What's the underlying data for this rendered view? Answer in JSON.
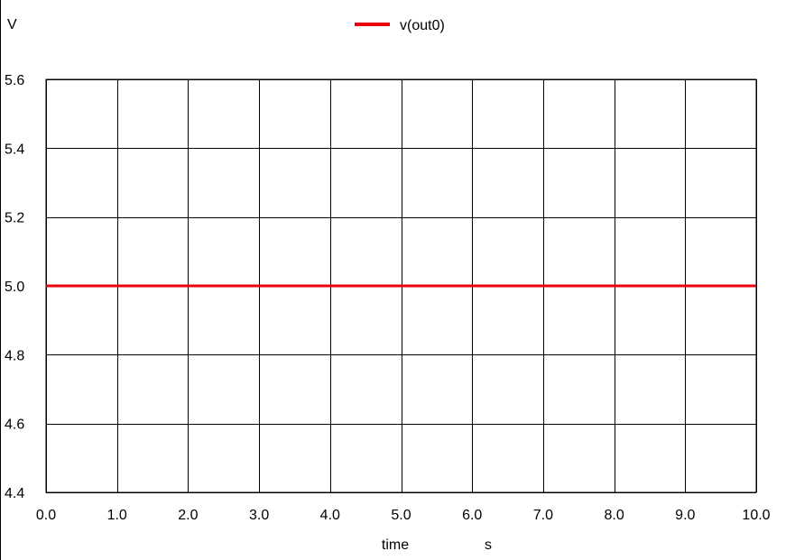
{
  "chart_data": {
    "type": "line",
    "title": "",
    "xlabel": "time",
    "xunit": "s",
    "ylabel": "V",
    "xlim": [
      0,
      10
    ],
    "ylim": [
      4.4,
      5.6
    ],
    "x_ticks": [
      "0.0",
      "1.0",
      "2.0",
      "3.0",
      "4.0",
      "5.0",
      "6.0",
      "7.0",
      "8.0",
      "9.0",
      "10.0"
    ],
    "y_ticks": [
      "4.4",
      "4.6",
      "4.8",
      "5.0",
      "5.2",
      "5.4",
      "5.6"
    ],
    "grid": true,
    "legend_position": "top-center",
    "series": [
      {
        "name": "v(out0)",
        "color": "#e8000b",
        "x": [
          0,
          10
        ],
        "y": [
          5.0,
          5.0
        ]
      }
    ]
  }
}
